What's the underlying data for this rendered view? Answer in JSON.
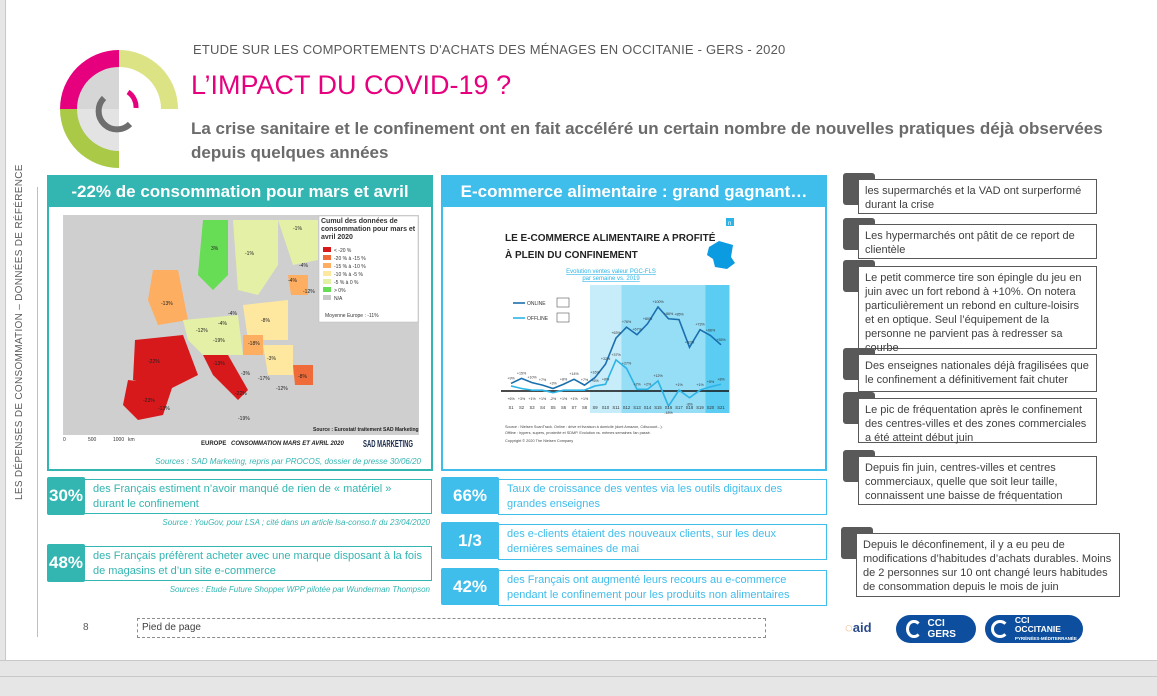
{
  "header": {
    "kicker": "ETUDE SUR LES COMPORTEMENTS D'ACHATS DES MÉNAGES EN OCCITANIE - GERS - 2020",
    "title": "L’IMPACT DU COVID-19 ?",
    "subtitle": "La crise sanitaire et le confinement ont en fait accéléré un certain nombre de nouvelles pratiques déjà observées depuis quelques années"
  },
  "side_label": "LES DÉPENSES DE CONSOMMATION – DONNÉES DE RÉFÉRENCE",
  "colors": {
    "teal": "#33b5b1",
    "blue": "#3fbdeb",
    "magenta": "#e6007e",
    "gray": "#595959"
  },
  "left_panel": {
    "title": "-22% de consommation pour mars et avril",
    "map": {
      "legend_title": "Cumul des données de consommation pour mars et avril 2020",
      "legend": [
        {
          "label": "< -20 %",
          "color": "#d7191c"
        },
        {
          "label": "-20 % à -15 %",
          "color": "#ef6c3a"
        },
        {
          "label": "-15 % à -10 %",
          "color": "#fdae61"
        },
        {
          "label": "-10 % à -5 %",
          "color": "#fee8a0"
        },
        {
          "label": "-5 % à 0 %",
          "color": "#e4f0a6"
        },
        {
          "label": "> 0%",
          "color": "#66dd55"
        },
        {
          "label": "N/A",
          "color": "#c8c8c8"
        }
      ],
      "average": "Moyenne Europe : -11%",
      "source": "Source : Eurostat/ traitement SAD Marketing",
      "scale": [
        "0",
        "500",
        "1000",
        "km"
      ],
      "caption_left": "EUROPE",
      "caption_right": "CONSOMMATION MARS ET AVRIL 2020",
      "logo": "SAD MARKETING",
      "values": [
        "3%",
        "-1%",
        "-1%",
        "-4%",
        "-4%",
        "-12%",
        "-13%",
        "-4%",
        "-8%",
        "-3%",
        "-12%",
        "-19%",
        "-4%",
        "-22%",
        "-23%",
        "-17%",
        "-13%",
        "-18%",
        "-3%",
        "-8%",
        "-22%",
        "-13%",
        "-12%",
        "-19%"
      ]
    },
    "source": "Sources : SAD Marketing, repris par PROCOS, dossier de presse 30/06/20"
  },
  "left_stats": [
    {
      "value": "30%",
      "text": "des Français estiment n’avoir manqué de rien de « matériel » durant le confinement",
      "source": "Source : YouGov, pour LSA ; cité dans un article lsa-conso.fr du 23/04/2020"
    },
    {
      "value": "48%",
      "text": "des Français préfèrent acheter avec une marque disposant à la fois de magasins et d’un site e-commerce",
      "source": "Sources : Etude Future Shopper WPP pilotée par Wunderman Thompson"
    }
  ],
  "right_panel": {
    "title": "E-commerce alimentaire : grand gagnant…",
    "chart_data": {
      "type": "line",
      "title": "LE E-COMMERCE ALIMENTAIRE A PROFITÉ À PLEIN DU CONFINEMENT",
      "subtitle": "Evolution ventes valeur PGC-FLS par semaine vs. 2019",
      "categories": [
        "S1",
        "S2",
        "S3",
        "S4",
        "S5",
        "S6",
        "S7",
        "S8",
        "S9",
        "S10",
        "S11",
        "S12",
        "S13",
        "S14",
        "S15",
        "S16",
        "S17",
        "S18",
        "S19",
        "S20",
        "S21"
      ],
      "series": [
        {
          "name": "ONLINE",
          "color": "#1a6fae",
          "values": [
            9,
            15,
            10,
            7,
            3,
            8,
            14,
            7,
            16,
            32,
            63,
            76,
            67,
            80,
            100,
            86,
            85,
            52,
            73,
            66,
            55
          ],
          "labels": [
            "+9%",
            "+15%",
            "+10%",
            "+7%",
            "+3%",
            "+8%",
            "+14%",
            "+7%",
            "+16%",
            "+32%",
            "+63%",
            "+76%",
            "+67%",
            "+80%",
            "+100%",
            "+86%",
            "+85%",
            "+52%",
            "+73%",
            "+66%",
            "+55%"
          ]
        },
        {
          "name": "OFFLINE",
          "color": "#2cb4e6",
          "values": [
            6,
            3,
            1,
            1,
            -2,
            1,
            1,
            1,
            6,
            8,
            37,
            27,
            2,
            2,
            12,
            -18,
            1,
            -8,
            1,
            5,
            8
          ],
          "labels": [
            "+6%",
            "+3%",
            "+1%",
            "+1%",
            "-2%",
            "+1%",
            "+1%",
            "+1%",
            "+6%",
            "+8%",
            "+37%",
            "+27%",
            "+2%",
            "+2%",
            "+12%",
            "-18%",
            "+1%",
            "-8%",
            "+1%",
            "+5%",
            "+8%"
          ]
        }
      ],
      "source": [
        "Source : Nielsen ScanTrack. Online : drive et livraison à domicile (dont Amazon, Cdiscount...).",
        "Offline : hypers, supers, proximité et SDMP. Evolution vs. mêmes semaines l'an passé."
      ],
      "copyright": "Copyright © 2020 The Nielsen Company",
      "brand": "n"
    }
  },
  "right_stats": [
    {
      "value": "66%",
      "text": "Taux de croissance des ventes via les outils digitaux des grandes enseignes"
    },
    {
      "value": "1/3",
      "text": "des e-clients étaient des nouveaux clients, sur les deux dernières semaines de mai"
    },
    {
      "value": "42%",
      "text": "des Français ont augmenté leurs recours au e-commerce pendant le confinement pour les produits non alimentaires"
    }
  ],
  "notes": [
    "les supermarchés et la VAD ont surperformé durant la crise",
    "Les hypermarchés ont pâtit de ce report de clientèle",
    "Le petit commerce tire son épingle du jeu en juin avec un fort rebond à +10%. On notera particulièrement un rebond en culture-loisirs et en optique. Seul l’équipement de la personne ne parvient pas à redresser sa courbe",
    "Des enseignes nationales déjà fragilisées que le confinement a définitivement fait chuter",
    "Le pic de fréquentation après le confinement des centres-villes et des zones commerciales a été atteint début juin",
    "Depuis fin juin, centres-villes et centres commerciaux, quelle que soit leur taille, connaissent une baisse de fréquentation",
    "Depuis le déconfinement, il y a eu peu de modifications d’habitudes d’achats durables. Moins de 2 personnes sur 10 ont changé leurs habitudes de consommation depuis le mois de juin"
  ],
  "footer": {
    "page": "8",
    "placeholder": "Pied de page",
    "logos": [
      "aid",
      "CCI GERS",
      "CCI OCCITANIE",
      "PYRÉNÉES-MÉDITERRANÉE"
    ]
  }
}
